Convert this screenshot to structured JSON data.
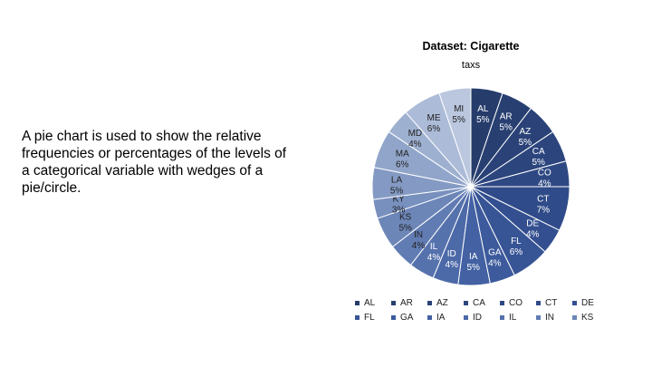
{
  "body_text": "A pie chart is used to show the relative frequencies or percentages of the levels of a categorical variable with wedges of a pie/circle.",
  "chart_data": {
    "type": "pie",
    "title": "Dataset: Cigarette",
    "subtitle": "taxs",
    "start_angle_deg": 0,
    "direction": "clockwise",
    "slices": [
      {
        "label": "AL",
        "value": 5,
        "pct": "5%",
        "color": "#263c6b"
      },
      {
        "label": "AR",
        "value": 5,
        "pct": "5%",
        "color": "#283f71"
      },
      {
        "label": "AZ",
        "value": 5,
        "pct": "5%",
        "color": "#2a4277"
      },
      {
        "label": "CA",
        "value": 5,
        "pct": "5%",
        "color": "#2c457d"
      },
      {
        "label": "CO",
        "value": 4,
        "pct": "4%",
        "color": "#2e4883"
      },
      {
        "label": "CT",
        "value": 7,
        "pct": "7%",
        "color": "#304b89"
      },
      {
        "label": "DE",
        "value": 4,
        "pct": "4%",
        "color": "#334f8f"
      },
      {
        "label": "FL",
        "value": 6,
        "pct": "6%",
        "color": "#375495"
      },
      {
        "label": "GA",
        "value": 4,
        "pct": "4%",
        "color": "#3c5a9c"
      },
      {
        "label": "IA",
        "value": 5,
        "pct": "5%",
        "color": "#4361a3"
      },
      {
        "label": "ID",
        "value": 4,
        "pct": "4%",
        "color": "#4c69a8"
      },
      {
        "label": "IL",
        "value": 4,
        "pct": "4%",
        "color": "#5672ad"
      },
      {
        "label": "IN",
        "value": 4,
        "pct": "4%",
        "color": "#617cb3"
      },
      {
        "label": "KS",
        "value": 5,
        "pct": "5%",
        "color": "#6c86b8"
      },
      {
        "label": "KY",
        "value": 3,
        "pct": "3%",
        "color": "#7890be"
      },
      {
        "label": "LA",
        "value": 5,
        "pct": "5%",
        "color": "#849ac4"
      },
      {
        "label": "MA",
        "value": 6,
        "pct": "6%",
        "color": "#91a5ca"
      },
      {
        "label": "MD",
        "value": 4,
        "pct": "4%",
        "color": "#9eb0d0"
      },
      {
        "label": "ME",
        "value": 6,
        "pct": "6%",
        "color": "#acbbd7"
      },
      {
        "label": "MI",
        "value": 5,
        "pct": "5%",
        "color": "#bac7de"
      }
    ],
    "legend": {
      "placement": "bottom",
      "items": [
        "AL",
        "AR",
        "AZ",
        "CA",
        "CO",
        "CT",
        "DE",
        "FL",
        "GA",
        "IA",
        "ID",
        "IL",
        "IN",
        "KS"
      ]
    }
  }
}
